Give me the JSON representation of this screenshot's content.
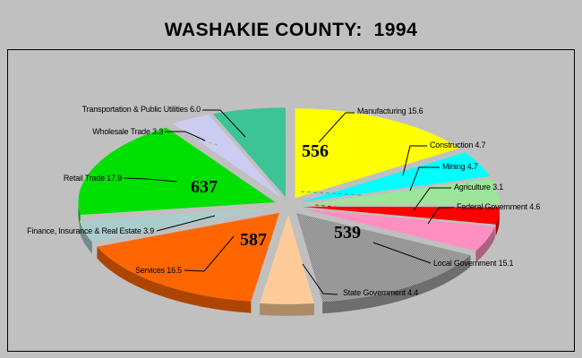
{
  "page": {
    "background_color": "#C0C0C0",
    "frame_border_color": "#000000"
  },
  "title": "WASHAKIE COUNTY:  1994",
  "chart_data": {
    "type": "pie",
    "title": "WASHAKIE COUNTY:  1994",
    "style": "3d-exploded",
    "unit": "percent",
    "legend_position": "callout-labels",
    "sectors": [
      {
        "label": "Manufacturing",
        "value": 15.6,
        "color": "#FFFF00",
        "count": "556"
      },
      {
        "label": "Construction",
        "value": 4.7,
        "color": "#00FFFF"
      },
      {
        "label": "Mining",
        "value": 4.7,
        "color": "#9BE69B"
      },
      {
        "label": "Agriculture",
        "value": 3.1,
        "color": "#FF0000"
      },
      {
        "label": "Federal Government",
        "value": 4.6,
        "color": "#FF8FC0"
      },
      {
        "label": "Local Government",
        "value": 15.1,
        "color": "#9C9C9C",
        "count": "539",
        "dithered": true
      },
      {
        "label": "State Government",
        "value": 4.4,
        "color": "#FFCC99"
      },
      {
        "label": "Services",
        "value": 16.5,
        "color": "#FF6600",
        "count": "587"
      },
      {
        "label": "Finance, Insurance & Real Estate",
        "value": 3.9,
        "color": "#AACCCC"
      },
      {
        "label": "Retail Trade",
        "value": 17.9,
        "color": "#00E000",
        "count": "637"
      },
      {
        "label": "Wholesale Trade",
        "value": 3.3,
        "color": "#CCCCF2"
      },
      {
        "label": "Transportation & Public Utilities",
        "value": 6.0,
        "color": "#3CC396"
      }
    ]
  }
}
